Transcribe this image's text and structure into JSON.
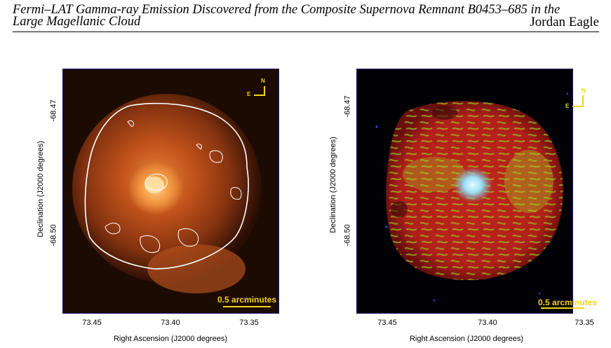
{
  "header": {
    "title_line1": "Fermi–LAT Gamma-ray Emission Discovered from the Composite Supernova Remnant B0453–685 in the",
    "title_line2": "Large Magellanic Cloud",
    "author": "Jordan Eagle"
  },
  "figures": {
    "left": {
      "ylabel": "Declination (J2000 degrees)",
      "xlabel": "Right Ascension (J2000  degrees)",
      "xticks": [
        "73.45",
        "73.40",
        "73.35"
      ],
      "yticks": [
        "-68.47",
        "-68.50"
      ],
      "compass_n": "N",
      "compass_e": "E",
      "scalebar": "0.5 arcminutes",
      "colors": {
        "scalebar": "#f2d21b",
        "contour": "#ffffff"
      }
    },
    "right": {
      "ylabel": "Declination (J2000  degrees)",
      "xlabel": "Right Ascension (J2000  degrees)",
      "xticks": [
        "73.45",
        "73.40",
        "73.35"
      ],
      "yticks": [
        "-68.47",
        "-68.50"
      ],
      "compass_n": "N",
      "compass_e": "E",
      "scalebar": "0.5 arcminutes",
      "colors": {
        "scalebar": "#f2d21b"
      }
    }
  }
}
